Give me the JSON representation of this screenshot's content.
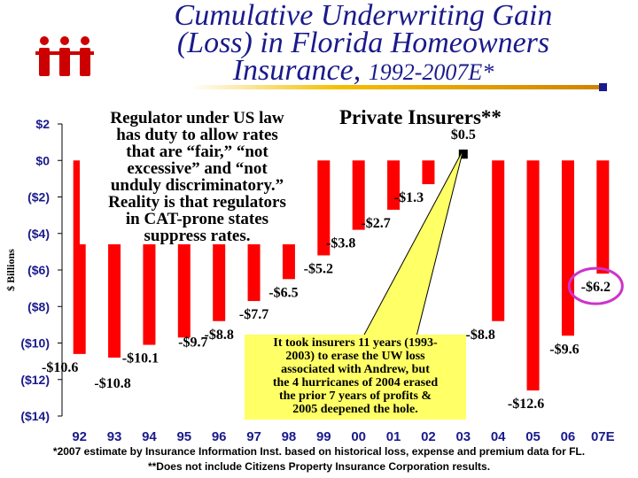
{
  "title": {
    "line1": "Cumulative Underwriting Gain",
    "line2": "(Loss) in Florida Homeowners",
    "line3": "Insurance,",
    "years": "1992-2007E*"
  },
  "callout": {
    "lines": [
      "Regulator under US law",
      "has duty to allow rates",
      "that are “fair,” “not",
      "excessive” and “not",
      "unduly discriminatory.”",
      "Reality is that regulators",
      "in CAT-prone states",
      "suppress rates."
    ]
  },
  "private_label": "Private Insurers**",
  "note": {
    "lines": [
      "It took insurers 11 years (1993-",
      "2003) to erase the UW loss",
      "associated with Andrew, but",
      "the 4 hurricanes of 2004 erased",
      "the prior 7 years of profits &",
      "2005 deepened the hole."
    ]
  },
  "footnote": {
    "line1": "*2007 estimate by Insurance Information Inst. based on historical loss, expense and premium data for FL.",
    "line2": "**Does not include Citizens Property Insurance Corporation results."
  },
  "chart_data": {
    "type": "bar",
    "ylabel": "$ Billions",
    "ylim": [
      -14,
      2
    ],
    "y_ticks": [
      2,
      0,
      -2,
      -4,
      -6,
      -8,
      -10,
      -12,
      -14
    ],
    "y_tick_labels": [
      "$2",
      "$0",
      "($2)",
      "($4)",
      "($6)",
      "($8)",
      "($10)",
      "($12)",
      "($14)"
    ],
    "categories": [
      "92",
      "93",
      "94",
      "95",
      "96",
      "97",
      "98",
      "99",
      "00",
      "01",
      "02",
      "03",
      "04",
      "05",
      "06",
      "07E"
    ],
    "values": [
      -10.6,
      -10.8,
      -10.1,
      -9.7,
      -8.8,
      -7.7,
      -6.5,
      -5.2,
      -3.8,
      -2.7,
      -1.3,
      0.5,
      -8.8,
      -12.6,
      -9.6,
      -6.2
    ],
    "data_labels": [
      "-$10.6",
      "-$10.8",
      "-$10.1",
      "-$9.7",
      "-$8.8",
      "-$7.7",
      "-$6.5",
      "-$5.2",
      "-$3.8",
      "-$2.7",
      "-$1.3",
      "$0.5",
      "-$8.8",
      "-$12.6",
      "-$9.6",
      "-$6.2"
    ],
    "bar_color": "#ff0000",
    "highlight_color": "#cc33cc",
    "marker_color": "#000000",
    "grid": false
  }
}
